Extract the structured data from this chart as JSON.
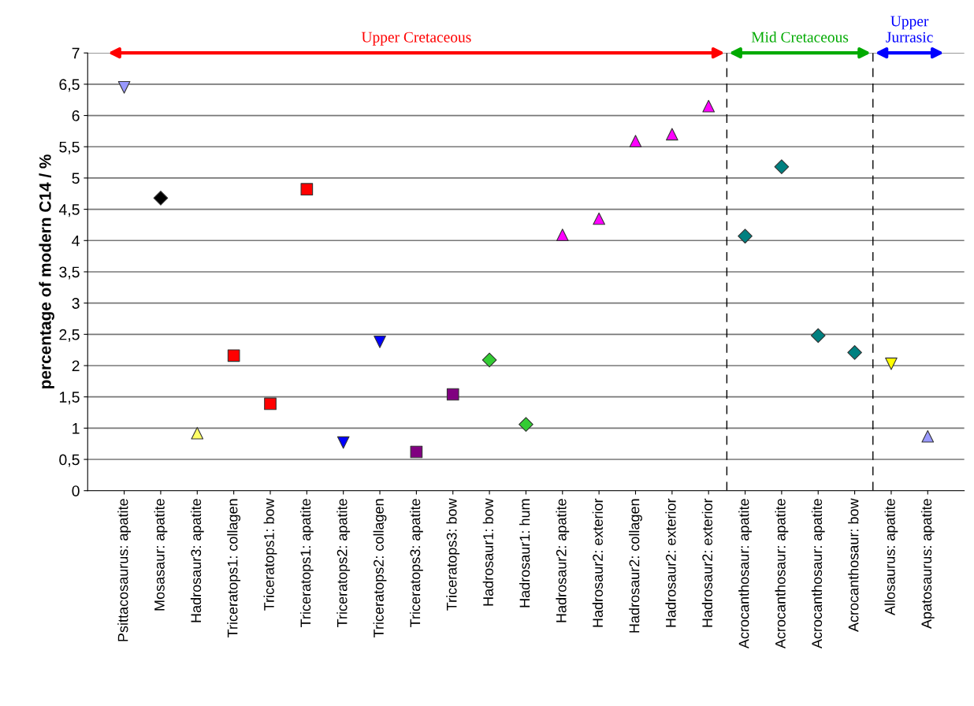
{
  "chart_data": {
    "type": "scatter",
    "ylabel": "percentage of modern C14 / %",
    "categories": [
      "Psittacosaurus: apatite",
      "Mosasaur: apatite",
      "Hadrosaur3: apatite",
      "Triceratops1: collagen",
      "Triceratops1: bow",
      "Triceratops1: apatite",
      "Triceratops2: apatite",
      "Triceratops2: collagen",
      "Triceratops3: apatite",
      "Triceratops3: bow",
      "Hadrosaur1: bow",
      "Hadrosaur1: hum",
      "Hadrosaur2: apatite",
      "Hadrosaur2: exterior",
      "Hadrosaur2: collagen",
      "Hadrosaur2: exterior",
      "Hadrosaur2: exterior",
      "Acrocanthosaur: apatite",
      "Acrocanthosaur: apatite",
      "Acrocanthosaur: apatite",
      "Acrocanthosaur: bow",
      "Allosaurus: apatite",
      "Apatosaurus: apatite"
    ],
    "series": [
      {
        "color": "#9999ff",
        "marker": "triangle_down",
        "values": [
          6.45,
          null,
          null,
          null,
          null,
          null,
          null,
          null,
          null,
          null,
          null,
          null,
          null,
          null,
          null,
          null,
          null,
          null,
          null,
          null,
          null,
          null,
          null
        ]
      },
      {
        "color": "#000000",
        "marker": "diamond",
        "values": [
          null,
          4.68,
          null,
          null,
          null,
          null,
          null,
          null,
          null,
          null,
          null,
          null,
          null,
          null,
          null,
          null,
          null,
          null,
          null,
          null,
          null,
          null,
          null
        ]
      },
      {
        "color": "#ffff66",
        "marker": "triangle",
        "values": [
          null,
          null,
          0.92,
          null,
          null,
          null,
          null,
          null,
          null,
          null,
          null,
          null,
          null,
          null,
          null,
          null,
          null,
          null,
          null,
          null,
          null,
          null,
          null
        ]
      },
      {
        "color": "#ff0000",
        "marker": "square",
        "values": [
          null,
          null,
          null,
          2.16,
          1.39,
          4.82,
          null,
          null,
          null,
          null,
          null,
          null,
          null,
          null,
          null,
          null,
          null,
          null,
          null,
          null,
          null,
          null,
          null
        ]
      },
      {
        "color": "#0000ff",
        "marker": "triangle_down",
        "values": [
          null,
          null,
          null,
          null,
          null,
          null,
          0.77,
          2.38,
          null,
          null,
          null,
          null,
          null,
          null,
          null,
          null,
          null,
          null,
          null,
          null,
          null,
          null,
          null
        ]
      },
      {
        "color": "#800080",
        "marker": "square",
        "values": [
          null,
          null,
          null,
          null,
          null,
          null,
          null,
          null,
          0.62,
          1.54,
          null,
          null,
          null,
          null,
          null,
          null,
          null,
          null,
          null,
          null,
          null,
          null,
          null
        ]
      },
      {
        "color": "#33cc33",
        "marker": "diamond",
        "values": [
          null,
          null,
          null,
          null,
          null,
          null,
          null,
          null,
          null,
          null,
          2.09,
          1.06,
          null,
          null,
          null,
          null,
          null,
          null,
          null,
          null,
          null,
          null,
          null
        ]
      },
      {
        "color": "#ff00ff",
        "marker": "triangle",
        "values": [
          null,
          null,
          null,
          null,
          null,
          null,
          null,
          null,
          null,
          null,
          null,
          null,
          4.09,
          4.35,
          5.59,
          5.7,
          6.15,
          null,
          null,
          null,
          null,
          null,
          null
        ]
      },
      {
        "color": "#008080",
        "marker": "diamond",
        "values": [
          null,
          null,
          null,
          null,
          null,
          null,
          null,
          null,
          null,
          null,
          null,
          null,
          null,
          null,
          null,
          null,
          null,
          4.07,
          5.18,
          2.48,
          2.21,
          null,
          null
        ]
      },
      {
        "color": "#ffff00",
        "marker": "triangle_down",
        "values": [
          null,
          null,
          null,
          null,
          null,
          null,
          null,
          null,
          null,
          null,
          null,
          null,
          null,
          null,
          null,
          null,
          null,
          null,
          null,
          null,
          null,
          2.03,
          null
        ]
      },
      {
        "color": "#9999ff",
        "marker": "triangle",
        "values": [
          null,
          null,
          null,
          null,
          null,
          null,
          null,
          null,
          null,
          null,
          null,
          null,
          null,
          null,
          null,
          null,
          null,
          null,
          null,
          null,
          null,
          null,
          0.87
        ]
      }
    ],
    "ylim": [
      0,
      7
    ],
    "yticks": [
      0,
      {
        "value": 0.5,
        "label": "0,5"
      },
      1,
      {
        "value": 1.5,
        "label": "1,5"
      },
      2,
      {
        "value": 2.5,
        "label": "2,5"
      },
      3,
      {
        "value": 3.5,
        "label": "3,5"
      },
      4,
      {
        "value": 4.5,
        "label": "4,5"
      },
      5,
      {
        "value": 5.5,
        "label": "5,5"
      },
      6,
      {
        "value": 6.5,
        "label": "6,5"
      },
      7
    ],
    "grid": "y",
    "annotations": [
      "Upper Cretaceous",
      "Mid Cretaceous",
      "Upper\nJurrasic"
    ]
  }
}
